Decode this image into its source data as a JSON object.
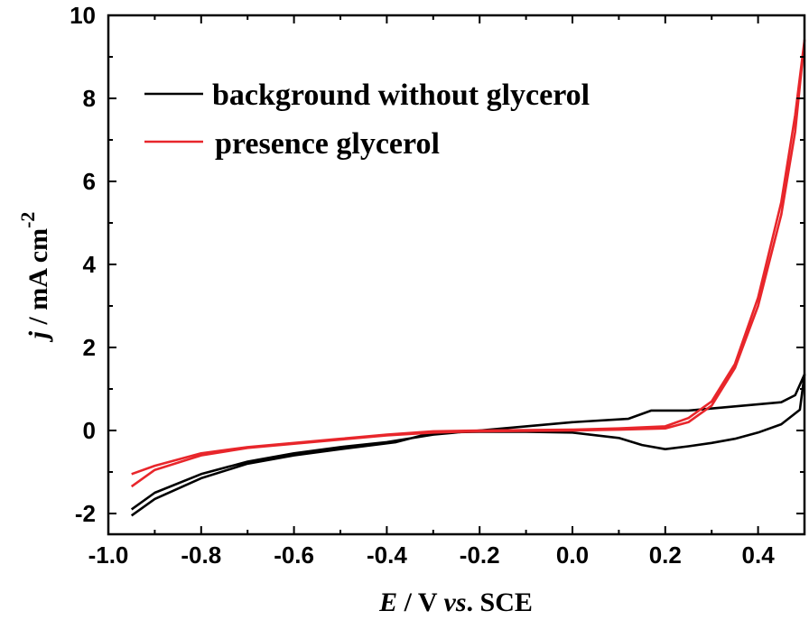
{
  "chart_data": {
    "type": "line",
    "xlabel": {
      "main": "E",
      "mid": " / V ",
      "vs": "vs",
      "end": ". SCE"
    },
    "ylabel": {
      "main": "j",
      "mid": " / mA cm",
      "sup": "-2"
    },
    "xlim": [
      -1.0,
      0.5
    ],
    "ylim": [
      -2.5,
      10
    ],
    "x_ticks": [
      "-1.0",
      "-0.8",
      "-0.6",
      "-0.4",
      "-0.2",
      "0.0",
      "0.2",
      "0.4"
    ],
    "y_ticks": [
      "-2",
      "0",
      "2",
      "4",
      "6",
      "8",
      "10"
    ],
    "grid": false,
    "legend_position": "top-left",
    "series": [
      {
        "name": "background without glycerol",
        "color": "#000000",
        "forward": [
          [
            -0.95,
            -1.9
          ],
          [
            -0.9,
            -1.5
          ],
          [
            -0.8,
            -1.05
          ],
          [
            -0.7,
            -0.75
          ],
          [
            -0.6,
            -0.55
          ],
          [
            -0.5,
            -0.4
          ],
          [
            -0.4,
            -0.28
          ],
          [
            -0.3,
            -0.1
          ],
          [
            -0.2,
            0.0
          ],
          [
            -0.1,
            0.1
          ],
          [
            0.0,
            0.2
          ],
          [
            0.12,
            0.28
          ],
          [
            0.17,
            0.48
          ],
          [
            0.25,
            0.48
          ],
          [
            0.35,
            0.58
          ],
          [
            0.45,
            0.68
          ],
          [
            0.48,
            0.85
          ],
          [
            0.5,
            1.35
          ]
        ],
        "reverse": [
          [
            0.5,
            1.35
          ],
          [
            0.49,
            0.5
          ],
          [
            0.45,
            0.15
          ],
          [
            0.4,
            -0.05
          ],
          [
            0.35,
            -0.2
          ],
          [
            0.3,
            -0.3
          ],
          [
            0.25,
            -0.38
          ],
          [
            0.2,
            -0.45
          ],
          [
            0.15,
            -0.35
          ],
          [
            0.1,
            -0.18
          ],
          [
            0.0,
            -0.05
          ],
          [
            -0.1,
            -0.03
          ],
          [
            -0.2,
            -0.03
          ],
          [
            -0.3,
            -0.05
          ],
          [
            -0.38,
            -0.28
          ],
          [
            -0.5,
            -0.45
          ],
          [
            -0.6,
            -0.6
          ],
          [
            -0.7,
            -0.8
          ],
          [
            -0.8,
            -1.15
          ],
          [
            -0.9,
            -1.65
          ],
          [
            -0.95,
            -2.05
          ]
        ]
      },
      {
        "name": "presence glycerol",
        "color": "#e8262b",
        "forward": [
          [
            -0.95,
            -1.05
          ],
          [
            -0.9,
            -0.85
          ],
          [
            -0.8,
            -0.55
          ],
          [
            -0.7,
            -0.4
          ],
          [
            -0.6,
            -0.3
          ],
          [
            -0.5,
            -0.2
          ],
          [
            -0.4,
            -0.1
          ],
          [
            -0.3,
            -0.02
          ],
          [
            -0.2,
            0.0
          ],
          [
            0.0,
            0.02
          ],
          [
            0.1,
            0.05
          ],
          [
            0.2,
            0.1
          ],
          [
            0.25,
            0.3
          ],
          [
            0.3,
            0.7
          ],
          [
            0.35,
            1.6
          ],
          [
            0.4,
            3.2
          ],
          [
            0.45,
            5.5
          ],
          [
            0.48,
            7.6
          ],
          [
            0.5,
            9.4
          ]
        ],
        "reverse": [
          [
            0.5,
            9.4
          ],
          [
            0.48,
            7.2
          ],
          [
            0.45,
            5.2
          ],
          [
            0.4,
            3.0
          ],
          [
            0.35,
            1.5
          ],
          [
            0.3,
            0.6
          ],
          [
            0.25,
            0.2
          ],
          [
            0.2,
            0.05
          ],
          [
            0.1,
            0.02
          ],
          [
            0.0,
            0.0
          ],
          [
            -0.2,
            -0.02
          ],
          [
            -0.3,
            -0.05
          ],
          [
            -0.4,
            -0.12
          ],
          [
            -0.5,
            -0.22
          ],
          [
            -0.6,
            -0.32
          ],
          [
            -0.7,
            -0.42
          ],
          [
            -0.8,
            -0.6
          ],
          [
            -0.9,
            -0.95
          ],
          [
            -0.95,
            -1.35
          ]
        ]
      }
    ]
  }
}
